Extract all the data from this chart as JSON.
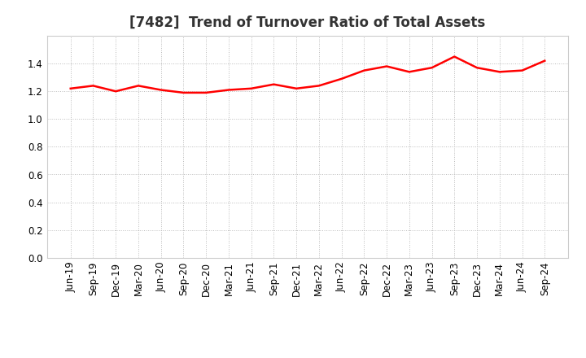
{
  "title": "[7482]  Trend of Turnover Ratio of Total Assets",
  "x_labels": [
    "Jun-19",
    "Sep-19",
    "Dec-19",
    "Mar-20",
    "Jun-20",
    "Sep-20",
    "Dec-20",
    "Mar-21",
    "Jun-21",
    "Sep-21",
    "Dec-21",
    "Mar-22",
    "Jun-22",
    "Sep-22",
    "Dec-22",
    "Mar-23",
    "Jun-23",
    "Sep-23",
    "Dec-23",
    "Mar-24",
    "Jun-24",
    "Sep-24"
  ],
  "y_values": [
    1.22,
    1.24,
    1.2,
    1.24,
    1.21,
    1.19,
    1.19,
    1.21,
    1.22,
    1.25,
    1.22,
    1.24,
    1.29,
    1.35,
    1.38,
    1.34,
    1.37,
    1.45,
    1.37,
    1.34,
    1.35,
    1.42
  ],
  "line_color": "#ff0000",
  "line_width": 1.8,
  "ylim": [
    0.0,
    1.6
  ],
  "yticks": [
    0.0,
    0.2,
    0.4,
    0.6,
    0.8,
    1.0,
    1.2,
    1.4
  ],
  "grid_color": "#bbbbbb",
  "bg_color": "#ffffff",
  "title_fontsize": 12,
  "tick_fontsize": 8.5
}
